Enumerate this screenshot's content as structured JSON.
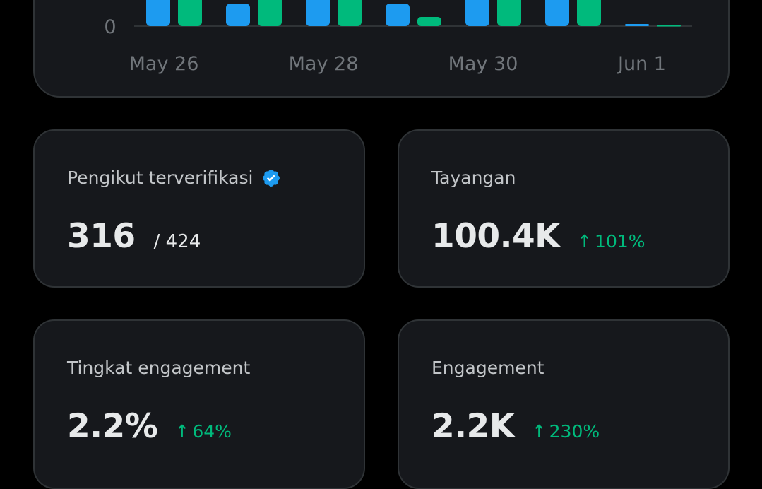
{
  "chart_data": {
    "type": "bar",
    "x_tick_labels": [
      "May 26",
      "May 28",
      "May 30",
      "Jun 1"
    ],
    "y_tick_labels": [
      "0"
    ],
    "series": [
      {
        "color": "#1d9bf0",
        "values": [
          null,
          0.9,
          null,
          0.9,
          null,
          null,
          0.05
        ]
      },
      {
        "color": "#00ba7c",
        "values": [
          null,
          null,
          null,
          0.35,
          null,
          null,
          0.02
        ]
      }
    ],
    "note_cropped": true
  },
  "colors": {
    "accent_blue": "#1d9bf0",
    "positive_green": "#00ba7c",
    "card_bg": "#16181c",
    "card_border": "#2f3336"
  },
  "cards": {
    "verified_followers": {
      "label": "Pengikut terverifikasi",
      "icon": "verified-badge-icon",
      "value": "316",
      "sub": "/ 424"
    },
    "impressions": {
      "label": "Tayangan",
      "value": "100.4K",
      "change_arrow": "↑",
      "change": "101%"
    },
    "engagement_rate": {
      "label": "Tingkat engagement",
      "value": "2.2%",
      "change_arrow": "↑",
      "change": "64%"
    },
    "engagements": {
      "label": "Engagement",
      "value": "2.2K",
      "change_arrow": "↑",
      "change": "230%"
    }
  }
}
